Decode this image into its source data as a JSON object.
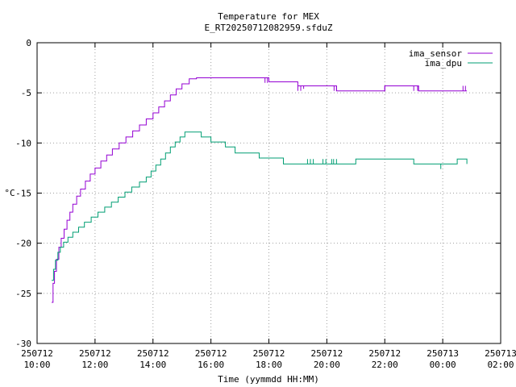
{
  "chart_data": {
    "type": "line",
    "title": "Temperature for MEX",
    "subtitle": "E_RT20250712082959.sfduZ",
    "xlabel": "Time (yymmdd HH:MM)",
    "ylabel": "°C",
    "xlim": [
      "2025-07-12 10:00",
      "2025-07-13 02:00"
    ],
    "ylim": [
      -30,
      0
    ],
    "yticks": [
      0,
      -5,
      -10,
      -15,
      -20,
      -25,
      -30
    ],
    "xticks": [
      {
        "t": "2025-07-12 10:00",
        "date": "250712",
        "time": "10:00"
      },
      {
        "t": "2025-07-12 12:00",
        "date": "250712",
        "time": "12:00"
      },
      {
        "t": "2025-07-12 14:00",
        "date": "250712",
        "time": "14:00"
      },
      {
        "t": "2025-07-12 16:00",
        "date": "250712",
        "time": "16:00"
      },
      {
        "t": "2025-07-12 18:00",
        "date": "250712",
        "time": "18:00"
      },
      {
        "t": "2025-07-12 20:00",
        "date": "250712",
        "time": "20:00"
      },
      {
        "t": "2025-07-12 22:00",
        "date": "250712",
        "time": "22:00"
      },
      {
        "t": "2025-07-13 00:00",
        "date": "250713",
        "time": "00:00"
      },
      {
        "t": "2025-07-13 02:00",
        "date": "250713",
        "time": "02:00"
      }
    ],
    "grid": true,
    "legend_position": "top-right",
    "series": [
      {
        "name": "ima_sensor",
        "color": "#9400d3",
        "step": true,
        "points": [
          [
            "2025-07-12 10:30",
            -25.9
          ],
          [
            "2025-07-12 10:33",
            -24.0
          ],
          [
            "2025-07-12 10:36",
            -22.8
          ],
          [
            "2025-07-12 10:40",
            -21.6
          ],
          [
            "2025-07-12 10:45",
            -20.4
          ],
          [
            "2025-07-12 10:50",
            -19.5
          ],
          [
            "2025-07-12 10:56",
            -18.6
          ],
          [
            "2025-07-12 11:02",
            -17.7
          ],
          [
            "2025-07-12 11:08",
            -16.9
          ],
          [
            "2025-07-12 11:14",
            -16.1
          ],
          [
            "2025-07-12 11:22",
            -15.3
          ],
          [
            "2025-07-12 11:30",
            -14.6
          ],
          [
            "2025-07-12 11:40",
            -13.8
          ],
          [
            "2025-07-12 11:50",
            -13.1
          ],
          [
            "2025-07-12 12:00",
            -12.5
          ],
          [
            "2025-07-12 12:12",
            -11.8
          ],
          [
            "2025-07-12 12:24",
            -11.2
          ],
          [
            "2025-07-12 12:36",
            -10.6
          ],
          [
            "2025-07-12 12:50",
            -10.0
          ],
          [
            "2025-07-12 13:04",
            -9.4
          ],
          [
            "2025-07-12 13:18",
            -8.8
          ],
          [
            "2025-07-12 13:32",
            -8.2
          ],
          [
            "2025-07-12 13:46",
            -7.6
          ],
          [
            "2025-07-12 14:00",
            -7.0
          ],
          [
            "2025-07-12 14:12",
            -6.4
          ],
          [
            "2025-07-12 14:24",
            -5.8
          ],
          [
            "2025-07-12 14:36",
            -5.2
          ],
          [
            "2025-07-12 14:48",
            -4.6
          ],
          [
            "2025-07-12 15:00",
            -4.1
          ],
          [
            "2025-07-12 15:15",
            -3.6
          ],
          [
            "2025-07-12 15:30",
            -3.5
          ],
          [
            "2025-07-12 17:50",
            -3.5
          ],
          [
            "2025-07-12 18:00",
            -3.9
          ],
          [
            "2025-07-12 19:00",
            -4.3
          ],
          [
            "2025-07-12 20:20",
            -4.8
          ],
          [
            "2025-07-12 22:00",
            -4.3
          ],
          [
            "2025-07-12 23:10",
            -4.8
          ],
          [
            "2025-07-13 00:50",
            -4.8
          ]
        ],
        "spikes": [
          [
            "2025-07-12 17:52",
            -3.5,
            -4.0
          ],
          [
            "2025-07-12 17:57",
            -3.5,
            -4.0
          ],
          [
            "2025-07-12 19:00",
            -4.3,
            -4.8
          ],
          [
            "2025-07-12 19:06",
            -4.3,
            -4.8
          ],
          [
            "2025-07-12 19:12",
            -4.3,
            -4.6
          ],
          [
            "2025-07-12 20:15",
            -4.3,
            -4.8
          ],
          [
            "2025-07-12 20:20",
            -4.3,
            -4.8
          ],
          [
            "2025-07-12 22:00",
            -4.3,
            -4.8
          ],
          [
            "2025-07-12 23:00",
            -4.3,
            -4.8
          ],
          [
            "2025-07-12 23:08",
            -4.3,
            -4.8
          ],
          [
            "2025-07-13 00:42",
            -4.3,
            -4.8
          ],
          [
            "2025-07-13 00:47",
            -4.3,
            -4.8
          ]
        ]
      },
      {
        "name": "ima_dpu",
        "color": "#009e73",
        "step": true,
        "points": [
          [
            "2025-07-12 10:30",
            -23.7
          ],
          [
            "2025-07-12 10:34",
            -22.6
          ],
          [
            "2025-07-12 10:38",
            -21.7
          ],
          [
            "2025-07-12 10:43",
            -20.9
          ],
          [
            "2025-07-12 10:48",
            -20.4
          ],
          [
            "2025-07-12 10:55",
            -19.9
          ],
          [
            "2025-07-12 11:04",
            -19.4
          ],
          [
            "2025-07-12 11:14",
            -18.9
          ],
          [
            "2025-07-12 11:26",
            -18.4
          ],
          [
            "2025-07-12 11:38",
            -17.9
          ],
          [
            "2025-07-12 11:52",
            -17.4
          ],
          [
            "2025-07-12 12:06",
            -16.9
          ],
          [
            "2025-07-12 12:20",
            -16.4
          ],
          [
            "2025-07-12 12:34",
            -15.9
          ],
          [
            "2025-07-12 12:48",
            -15.4
          ],
          [
            "2025-07-12 13:02",
            -14.9
          ],
          [
            "2025-07-12 13:16",
            -14.4
          ],
          [
            "2025-07-12 13:32",
            -13.9
          ],
          [
            "2025-07-12 13:46",
            -13.4
          ],
          [
            "2025-07-12 13:56",
            -12.8
          ],
          [
            "2025-07-12 14:06",
            -12.2
          ],
          [
            "2025-07-12 14:16",
            -11.6
          ],
          [
            "2025-07-12 14:26",
            -11.0
          ],
          [
            "2025-07-12 14:36",
            -10.4
          ],
          [
            "2025-07-12 14:46",
            -9.9
          ],
          [
            "2025-07-12 14:56",
            -9.4
          ],
          [
            "2025-07-12 15:06",
            -8.9
          ],
          [
            "2025-07-12 15:40",
            -9.4
          ],
          [
            "2025-07-12 16:00",
            -9.9
          ],
          [
            "2025-07-12 16:30",
            -10.4
          ],
          [
            "2025-07-12 16:50",
            -11.0
          ],
          [
            "2025-07-12 17:40",
            -11.5
          ],
          [
            "2025-07-12 18:30",
            -12.1
          ],
          [
            "2025-07-12 21:00",
            -11.6
          ],
          [
            "2025-07-12 23:00",
            -12.1
          ],
          [
            "2025-07-13 00:30",
            -11.6
          ],
          [
            "2025-07-13 00:50",
            -12.1
          ]
        ],
        "spikes": [
          [
            "2025-07-12 19:20",
            -12.1,
            -11.6
          ],
          [
            "2025-07-12 19:26",
            -12.1,
            -11.6
          ],
          [
            "2025-07-12 19:32",
            -12.1,
            -11.6
          ],
          [
            "2025-07-12 19:52",
            -12.1,
            -11.6
          ],
          [
            "2025-07-12 19:58",
            -12.1,
            -11.6
          ],
          [
            "2025-07-12 20:10",
            -12.1,
            -11.6
          ],
          [
            "2025-07-12 20:14",
            -12.1,
            -11.6
          ],
          [
            "2025-07-12 20:20",
            -12.1,
            -11.6
          ],
          [
            "2025-07-12 23:56",
            -12.1,
            -12.6
          ]
        ]
      }
    ]
  }
}
